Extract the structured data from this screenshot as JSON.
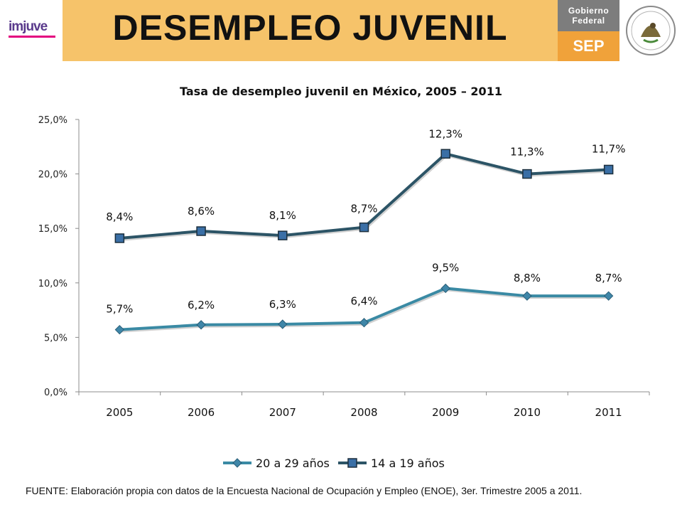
{
  "header": {
    "logo_left": "imjuve",
    "banner_title": "DESEMPLEO JUVENIL",
    "gov_top_line1": "Gobierno",
    "gov_top_line2": "Federal",
    "gov_bottom": "SEP"
  },
  "chart_data": {
    "type": "line",
    "title": "Tasa de desempleo juvenil en México, 2005 – 2011",
    "categories": [
      "2005",
      "2006",
      "2007",
      "2008",
      "2009",
      "2010",
      "2011"
    ],
    "y_ticks": [
      "0,0%",
      "5,0%",
      "10,0%",
      "15,0%",
      "20,0%",
      "25,0%"
    ],
    "ylim": [
      0,
      25
    ],
    "grid": false,
    "legend_position": "bottom",
    "series": [
      {
        "name": "20 a 29 años",
        "values": [
          5.7,
          6.2,
          6.3,
          6.4,
          9.5,
          8.8,
          8.7
        ],
        "plot_values": [
          5.7,
          6.15,
          6.2,
          6.35,
          9.5,
          8.8,
          8.8
        ],
        "labels": [
          "5,7%",
          "6,2%",
          "6,3%",
          "6,4%",
          "9,5%",
          "8,8%",
          "8,7%"
        ],
        "color": "#3a8aa4",
        "marker": "diamond"
      },
      {
        "name": "14 a 19 años",
        "values": [
          8.4,
          8.6,
          8.1,
          8.7,
          12.3,
          11.3,
          11.7
        ],
        "plot_values": [
          14.1,
          14.75,
          14.35,
          15.1,
          21.85,
          20.0,
          20.4
        ],
        "labels": [
          "8,4%",
          "8,6%",
          "8,1%",
          "8,7%",
          "12,3%",
          "11,3%",
          "11,7%"
        ],
        "color": "#2c5466",
        "marker": "square"
      }
    ]
  },
  "footer": {
    "source": "FUENTE: Elaboración propia con datos de la Encuesta Nacional de Ocupación y Empleo (ENOE), 3er. Trimestre 2005 a 2011."
  }
}
